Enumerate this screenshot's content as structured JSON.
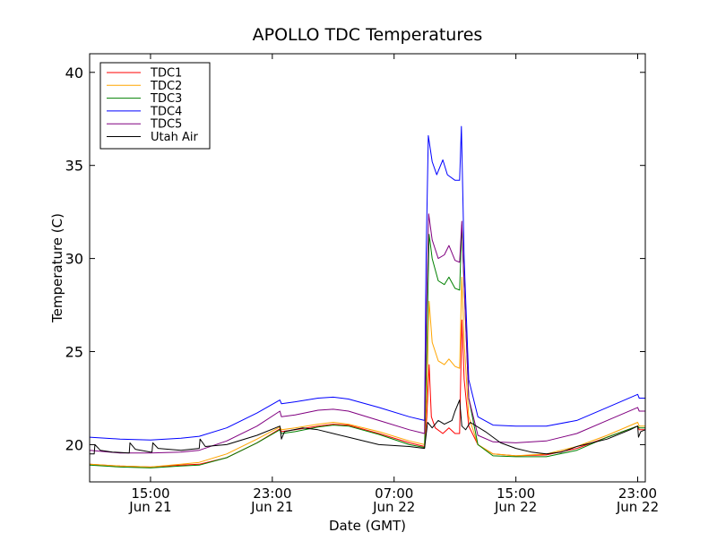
{
  "chart_data": {
    "type": "line",
    "title": "APOLLO TDC Temperatures",
    "xlabel": "Date (GMT)",
    "ylabel": "Temperature (C)",
    "xlim": [
      11.0,
      47.5
    ],
    "ylim": [
      18,
      41
    ],
    "yticks": [
      20,
      25,
      30,
      35,
      40
    ],
    "xticks": [
      {
        "value": 15,
        "time": "15:00",
        "date": "Jun 21"
      },
      {
        "value": 23,
        "time": "23:00",
        "date": "Jun 21"
      },
      {
        "value": 31,
        "time": "07:00",
        "date": "Jun 22"
      },
      {
        "value": 39,
        "time": "15:00",
        "date": "Jun 22"
      },
      {
        "value": 47,
        "time": "23:00",
        "date": "Jun 22"
      }
    ],
    "legend_position": "top-left",
    "series": [
      {
        "name": "TDC1",
        "color": "#ff0000",
        "points": [
          [
            11,
            18.95
          ],
          [
            13,
            18.85
          ],
          [
            15,
            18.8
          ],
          [
            17,
            18.9
          ],
          [
            18.2,
            18.95
          ],
          [
            20,
            19.3
          ],
          [
            22,
            20.1
          ],
          [
            23.5,
            20.85
          ],
          [
            23.6,
            20.7
          ],
          [
            24.5,
            20.8
          ],
          [
            26,
            21.0
          ],
          [
            27,
            21.1
          ],
          [
            28,
            21.05
          ],
          [
            30,
            20.6
          ],
          [
            32,
            20.1
          ],
          [
            33,
            19.9
          ],
          [
            33.15,
            21.5
          ],
          [
            33.3,
            24.3
          ],
          [
            33.45,
            21.5
          ],
          [
            33.7,
            20.9
          ],
          [
            34.2,
            20.6
          ],
          [
            34.6,
            20.9
          ],
          [
            35.0,
            20.6
          ],
          [
            35.3,
            20.6
          ],
          [
            35.45,
            26.7
          ],
          [
            35.6,
            23.5
          ],
          [
            35.9,
            21.0
          ],
          [
            36.5,
            20.0
          ],
          [
            37.5,
            19.5
          ],
          [
            39,
            19.4
          ],
          [
            41,
            19.45
          ],
          [
            43,
            19.8
          ],
          [
            45,
            20.4
          ],
          [
            47,
            21.0
          ],
          [
            47.1,
            20.8
          ],
          [
            47.5,
            20.8
          ]
        ]
      },
      {
        "name": "TDC2",
        "color": "#ffa500",
        "points": [
          [
            11,
            18.95
          ],
          [
            13,
            18.85
          ],
          [
            15,
            18.8
          ],
          [
            17,
            18.95
          ],
          [
            18.2,
            19.05
          ],
          [
            20,
            19.5
          ],
          [
            22,
            20.3
          ],
          [
            23.5,
            20.95
          ],
          [
            23.6,
            20.8
          ],
          [
            24.5,
            20.9
          ],
          [
            26,
            21.1
          ],
          [
            27,
            21.2
          ],
          [
            28,
            21.1
          ],
          [
            30,
            20.7
          ],
          [
            32,
            20.2
          ],
          [
            33,
            20.0
          ],
          [
            33.15,
            22.5
          ],
          [
            33.3,
            27.7
          ],
          [
            33.5,
            25.5
          ],
          [
            33.9,
            24.5
          ],
          [
            34.3,
            24.3
          ],
          [
            34.6,
            24.6
          ],
          [
            35.0,
            24.2
          ],
          [
            35.3,
            24.1
          ],
          [
            35.45,
            29.0
          ],
          [
            35.6,
            25.5
          ],
          [
            35.9,
            21.5
          ],
          [
            36.5,
            20.0
          ],
          [
            37.5,
            19.5
          ],
          [
            39,
            19.4
          ],
          [
            41,
            19.5
          ],
          [
            43,
            19.9
          ],
          [
            45,
            20.5
          ],
          [
            47,
            21.2
          ],
          [
            47.1,
            21.0
          ],
          [
            47.5,
            21.0
          ]
        ]
      },
      {
        "name": "TDC3",
        "color": "#008000",
        "points": [
          [
            11,
            18.9
          ],
          [
            13,
            18.8
          ],
          [
            15,
            18.75
          ],
          [
            17,
            18.85
          ],
          [
            18.2,
            18.9
          ],
          [
            20,
            19.3
          ],
          [
            22,
            20.1
          ],
          [
            23.5,
            20.8
          ],
          [
            23.6,
            20.6
          ],
          [
            24.5,
            20.7
          ],
          [
            26,
            20.95
          ],
          [
            27,
            21.05
          ],
          [
            28,
            21.0
          ],
          [
            30,
            20.55
          ],
          [
            32,
            20.0
          ],
          [
            33,
            19.85
          ],
          [
            33.15,
            25.0
          ],
          [
            33.3,
            31.3
          ],
          [
            33.5,
            30.0
          ],
          [
            33.9,
            28.8
          ],
          [
            34.3,
            28.6
          ],
          [
            34.6,
            29.0
          ],
          [
            35.0,
            28.4
          ],
          [
            35.3,
            28.3
          ],
          [
            35.45,
            31.8
          ],
          [
            35.6,
            28.5
          ],
          [
            35.9,
            22.5
          ],
          [
            36.5,
            20.0
          ],
          [
            37.5,
            19.4
          ],
          [
            39,
            19.35
          ],
          [
            41,
            19.35
          ],
          [
            43,
            19.7
          ],
          [
            45,
            20.4
          ],
          [
            47,
            21.0
          ],
          [
            47.1,
            20.9
          ],
          [
            47.5,
            20.9
          ]
        ]
      },
      {
        "name": "TDC4",
        "color": "#0000ff",
        "points": [
          [
            11,
            20.4
          ],
          [
            13,
            20.3
          ],
          [
            15,
            20.25
          ],
          [
            17,
            20.35
          ],
          [
            18.2,
            20.45
          ],
          [
            20,
            20.9
          ],
          [
            22,
            21.7
          ],
          [
            23.5,
            22.4
          ],
          [
            23.6,
            22.2
          ],
          [
            24.5,
            22.3
          ],
          [
            26,
            22.5
          ],
          [
            27,
            22.55
          ],
          [
            28,
            22.45
          ],
          [
            30,
            22.0
          ],
          [
            32,
            21.5
          ],
          [
            33,
            21.3
          ],
          [
            33.1,
            30.0
          ],
          [
            33.25,
            36.6
          ],
          [
            33.5,
            35.2
          ],
          [
            33.8,
            34.5
          ],
          [
            34.2,
            35.3
          ],
          [
            34.5,
            34.5
          ],
          [
            35.0,
            34.2
          ],
          [
            35.3,
            34.2
          ],
          [
            35.42,
            37.1
          ],
          [
            35.6,
            30.0
          ],
          [
            35.9,
            23.5
          ],
          [
            36.5,
            21.5
          ],
          [
            37.5,
            21.05
          ],
          [
            39,
            21.0
          ],
          [
            41,
            21.0
          ],
          [
            43,
            21.3
          ],
          [
            45,
            22.0
          ],
          [
            47,
            22.7
          ],
          [
            47.1,
            22.5
          ],
          [
            47.5,
            22.5
          ]
        ]
      },
      {
        "name": "TDC5",
        "color": "#800080",
        "points": [
          [
            11,
            19.7
          ],
          [
            13,
            19.55
          ],
          [
            15,
            19.55
          ],
          [
            17,
            19.6
          ],
          [
            18.2,
            19.7
          ],
          [
            20,
            20.2
          ],
          [
            22,
            21.0
          ],
          [
            23.5,
            21.8
          ],
          [
            23.6,
            21.5
          ],
          [
            24.5,
            21.6
          ],
          [
            26,
            21.85
          ],
          [
            27,
            21.9
          ],
          [
            28,
            21.8
          ],
          [
            30,
            21.3
          ],
          [
            32,
            20.8
          ],
          [
            33,
            20.6
          ],
          [
            33.12,
            27.0
          ],
          [
            33.27,
            32.4
          ],
          [
            33.5,
            31.0
          ],
          [
            33.9,
            30.0
          ],
          [
            34.3,
            30.2
          ],
          [
            34.6,
            30.7
          ],
          [
            35.0,
            29.9
          ],
          [
            35.3,
            29.8
          ],
          [
            35.45,
            32.0
          ],
          [
            35.6,
            28.5
          ],
          [
            35.9,
            22.5
          ],
          [
            36.5,
            20.5
          ],
          [
            37.5,
            20.15
          ],
          [
            39,
            20.1
          ],
          [
            41,
            20.2
          ],
          [
            43,
            20.6
          ],
          [
            45,
            21.3
          ],
          [
            47,
            22.0
          ],
          [
            47.1,
            21.8
          ],
          [
            47.5,
            21.8
          ]
        ]
      },
      {
        "name": "Utah Air",
        "color": "#000000",
        "points": [
          [
            11,
            19.5
          ],
          [
            11.3,
            19.5
          ],
          [
            11.35,
            20.0
          ],
          [
            11.7,
            19.7
          ],
          [
            12.5,
            19.6
          ],
          [
            13.6,
            19.55
          ],
          [
            13.65,
            20.1
          ],
          [
            14,
            19.75
          ],
          [
            15,
            19.6
          ],
          [
            15.1,
            19.6
          ],
          [
            15.15,
            20.1
          ],
          [
            15.5,
            19.8
          ],
          [
            17,
            19.7
          ],
          [
            18.2,
            19.8
          ],
          [
            18.25,
            20.3
          ],
          [
            18.6,
            19.9
          ],
          [
            20,
            20.0
          ],
          [
            22,
            20.5
          ],
          [
            23.5,
            21.0
          ],
          [
            23.6,
            20.3
          ],
          [
            23.8,
            20.7
          ],
          [
            25,
            20.9
          ],
          [
            26,
            20.8
          ],
          [
            27,
            20.6
          ],
          [
            28,
            20.4
          ],
          [
            30,
            20.0
          ],
          [
            32,
            19.9
          ],
          [
            33,
            19.8
          ],
          [
            33.2,
            21.2
          ],
          [
            33.5,
            20.9
          ],
          [
            33.9,
            21.3
          ],
          [
            34.3,
            21.1
          ],
          [
            34.8,
            21.3
          ],
          [
            35.0,
            21.8
          ],
          [
            35.3,
            22.4
          ],
          [
            35.45,
            21.0
          ],
          [
            35.7,
            20.8
          ],
          [
            36,
            21.2
          ],
          [
            37,
            20.7
          ],
          [
            38,
            20.1
          ],
          [
            39,
            19.8
          ],
          [
            40,
            19.6
          ],
          [
            41,
            19.5
          ],
          [
            42,
            19.6
          ],
          [
            43,
            19.9
          ],
          [
            45,
            20.3
          ],
          [
            46.5,
            20.8
          ],
          [
            47,
            21.0
          ],
          [
            47.05,
            20.4
          ],
          [
            47.2,
            20.7
          ],
          [
            47.5,
            20.8
          ]
        ]
      }
    ]
  }
}
